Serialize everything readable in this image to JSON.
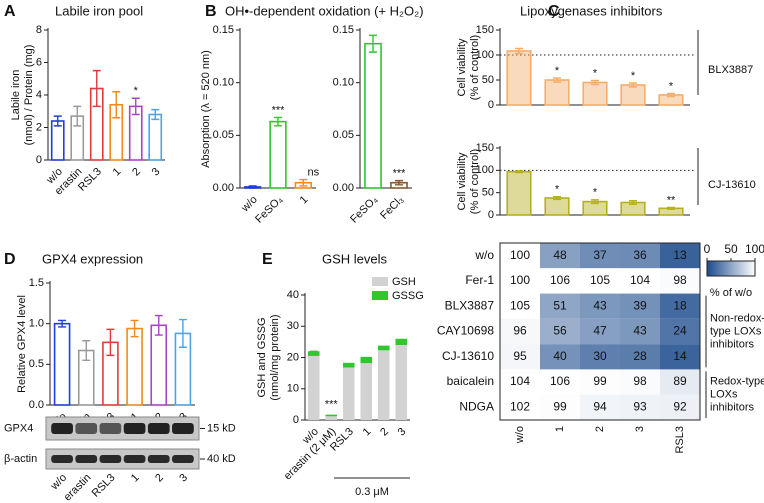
{
  "panels": [
    "A",
    "B",
    "C",
    "D",
    "E"
  ],
  "chart_data": [
    {
      "type": "bar",
      "title": "Labile iron pool",
      "ylabel": [
        "Labile iron",
        "(nmol) / Protein (mg)"
      ],
      "categories": [
        "w/o",
        "erastin",
        "RSL3",
        "1",
        "2",
        "3"
      ],
      "values": [
        2.4,
        2.7,
        4.4,
        3.4,
        3.3,
        2.8
      ],
      "errors": [
        0.3,
        0.6,
        1.1,
        0.8,
        0.5,
        0.3
      ],
      "colors": [
        "#1f3fd6",
        "#9a9a9a",
        "#e23a3a",
        "#f08a1e",
        "#a845c4",
        "#4ba3ea"
      ],
      "annotations": [
        null,
        null,
        null,
        null,
        "*",
        null
      ],
      "ylim": [
        0,
        8
      ],
      "yticks": [
        0,
        2,
        4,
        6,
        8
      ]
    },
    {
      "type": "bar",
      "title": "OH•-dependent oxidation (+ H₂O₂)",
      "ylabel": [
        "Absorption (λ = 520 nm)"
      ],
      "categories": [
        "w/o",
        "FeSO₄",
        "1"
      ],
      "values": [
        0.001,
        0.063,
        0.005
      ],
      "errors": [
        0.001,
        0.004,
        0.003
      ],
      "colors": [
        "#1f3fd6",
        "#2ec82e",
        "#f08a1e"
      ],
      "annotations": [
        null,
        "***",
        "ns"
      ],
      "ylim": [
        0,
        0.15
      ],
      "yticks": [
        {
          "value": 0,
          "label": "0.00"
        },
        {
          "value": 0.05,
          "label": "0.05"
        },
        {
          "value": 0.1,
          "label": "0.10"
        },
        {
          "value": 0.15,
          "label": "0.15"
        }
      ]
    },
    {
      "type": "bar",
      "categories": [
        "FeSO₄",
        "FeCl₃"
      ],
      "values": [
        0.137,
        0.005
      ],
      "errors": [
        0.008,
        0.002
      ],
      "colors": [
        "#2ec82e",
        "#8a5a2a"
      ],
      "annotations": [
        null,
        "***"
      ],
      "ylim": [
        0,
        0.15
      ],
      "yticks": [
        {
          "value": 0,
          "label": "0.00"
        },
        {
          "value": 0.05,
          "label": "0.05"
        },
        {
          "value": 0.1,
          "label": "0.10"
        },
        {
          "value": 0.15,
          "label": "0.15"
        }
      ]
    },
    {
      "type": "bar",
      "title": "Lipoxygenases inhibitors",
      "ylabel": [
        "Cell viability",
        "(% of control)"
      ],
      "group": "BLX3887",
      "values": [
        108,
        50,
        45,
        40,
        20
      ],
      "errors": [
        5,
        4,
        4,
        4,
        3
      ],
      "colors": [
        "#f5ad6a",
        "#f5ad6a",
        "#f5ad6a",
        "#f5ad6a",
        "#f5ad6a"
      ],
      "annotations": [
        null,
        "*",
        "*",
        "*",
        "*"
      ],
      "refline": 100,
      "ylim": [
        0,
        150
      ],
      "yticks": [
        0,
        50,
        100,
        150
      ]
    },
    {
      "type": "bar",
      "ylabel": [
        "Cell viability",
        "(% of control)"
      ],
      "group": "CJ-13610",
      "values": [
        97,
        38,
        30,
        28,
        15
      ],
      "errors": [
        2,
        3,
        4,
        4,
        2
      ],
      "colors": [
        "#b5b020",
        "#b5b020",
        "#b5b020",
        "#b5b020",
        "#b5b020"
      ],
      "annotations": [
        null,
        "*",
        "*",
        null,
        "**"
      ],
      "refline": 100,
      "ylim": [
        0,
        150
      ],
      "yticks": [
        0,
        50,
        100,
        150
      ]
    },
    {
      "type": "heatmap",
      "rows": [
        "w/o",
        "Fer-1",
        "BLX3887",
        "CAY10698",
        "CJ-13610",
        "baicalein",
        "NDGA"
      ],
      "columns": [
        "w/o",
        "1",
        "2",
        "3",
        "RSL3"
      ],
      "values": [
        [
          100,
          48,
          37,
          36,
          13
        ],
        [
          100,
          106,
          105,
          104,
          98
        ],
        [
          105,
          51,
          43,
          39,
          18
        ],
        [
          96,
          56,
          47,
          43,
          24
        ],
        [
          95,
          40,
          30,
          28,
          14
        ],
        [
          104,
          106,
          99,
          98,
          89
        ],
        [
          102,
          99,
          94,
          93,
          92
        ]
      ],
      "colormap": [
        "#1b4a8c",
        "#ffffff"
      ],
      "crange": [
        0,
        100
      ],
      "cticks": [
        0,
        50,
        100
      ],
      "colorbar_label": "% of w/o",
      "groups": [
        [
          "Non-redox-",
          "type LOXs",
          "inhibitors"
        ],
        [
          "Redox-type",
          "LOXs",
          "inhibitors"
        ]
      ]
    },
    {
      "type": "bar",
      "title": "GPX4 expression",
      "ylabel": [
        "Relative GPX4 level"
      ],
      "categories": [
        "w/o",
        "erastin",
        "RSL3",
        "1",
        "2",
        "3"
      ],
      "values": [
        1.0,
        0.67,
        0.77,
        0.94,
        0.98,
        0.88
      ],
      "errors": [
        0.04,
        0.12,
        0.16,
        0.1,
        0.12,
        0.17
      ],
      "colors": [
        "#1f3fd6",
        "#9a9a9a",
        "#e23a3a",
        "#f08a1e",
        "#a845c4",
        "#4ba3ea"
      ],
      "ylim": [
        0,
        1.5
      ],
      "yticks": [
        {
          "value": 0,
          "label": "0.0"
        },
        {
          "value": 0.5,
          "label": "0.5"
        },
        {
          "value": 1,
          "label": "1.0"
        },
        {
          "value": 1.5,
          "label": "1.5"
        }
      ],
      "blot": {
        "bands": [
          "GPX4",
          "β-actin"
        ],
        "sizes": [
          "15 kD",
          "40 kD"
        ]
      }
    },
    {
      "type": "stacked_bar",
      "title": "GSH levels",
      "ylabel": [
        "GSH and GSSG",
        "(nmol/mg protein)"
      ],
      "categories": [
        "w/o",
        "erastin (2 μM)",
        "RSL3",
        "1",
        "2",
        "3"
      ],
      "series": [
        {
          "name": "GSH",
          "color": "#d2d2d2",
          "values": [
            20.5,
            1.2,
            16.8,
            18.2,
            22.3,
            24.0
          ],
          "errors": [
            1.5,
            0.3,
            1.0,
            1.2,
            0.8,
            1.5
          ]
        },
        {
          "name": "GSSG",
          "color": "#2ec82e",
          "values": [
            1.5,
            0.5,
            1.5,
            2.0,
            1.5,
            2.0
          ]
        }
      ],
      "annotations": [
        null,
        "***",
        null,
        null,
        null,
        null
      ],
      "concentration_label": "0.3 μM",
      "ylim": [
        0,
        40
      ],
      "yticks": [
        0,
        10,
        20,
        30,
        40
      ]
    }
  ]
}
